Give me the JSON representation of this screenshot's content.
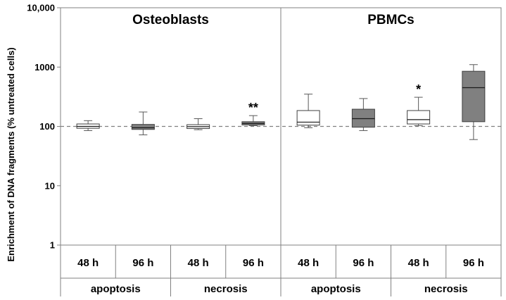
{
  "chart_data": {
    "type": "box",
    "ylabel": "Enrichment of DNA fragments (% untreated cells)",
    "y_scale": "log",
    "ylim": [
      1,
      10000
    ],
    "y_ticks": [
      {
        "value": 1,
        "label": "1"
      },
      {
        "value": 10,
        "label": "10"
      },
      {
        "value": 100,
        "label": "100"
      },
      {
        "value": 1000,
        "label": "1000"
      },
      {
        "value": 10000,
        "label": "10,000"
      }
    ],
    "reference_line": {
      "value": 100,
      "style": "dashed",
      "color": "#808080"
    },
    "panels": [
      {
        "title": "Osteoblasts"
      },
      {
        "title": "PBMCs"
      }
    ],
    "groups": [
      {
        "label": "apoptosis"
      },
      {
        "label": "necrosis"
      },
      {
        "label": "apoptosis"
      },
      {
        "label": "necrosis"
      }
    ],
    "boxes": [
      {
        "panel": "Osteoblasts",
        "assay": "apoptosis",
        "time": "48 h",
        "fill": "#ffffff",
        "min": 85,
        "q1": 93,
        "median": 100,
        "q3": 110,
        "max": 125,
        "sig": ""
      },
      {
        "panel": "Osteoblasts",
        "assay": "apoptosis",
        "time": "96 h",
        "fill": "#808080",
        "min": 72,
        "q1": 89,
        "median": 95,
        "q3": 108,
        "max": 175,
        "sig": ""
      },
      {
        "panel": "Osteoblasts",
        "assay": "necrosis",
        "time": "48 h",
        "fill": "#ffffff",
        "min": 88,
        "q1": 92,
        "median": 99,
        "q3": 107,
        "max": 135,
        "sig": ""
      },
      {
        "panel": "Osteoblasts",
        "assay": "necrosis",
        "time": "96 h",
        "fill": "#808080",
        "min": 103,
        "q1": 106,
        "median": 112,
        "q3": 120,
        "max": 152,
        "sig": "**"
      },
      {
        "panel": "PBMCs",
        "assay": "apoptosis",
        "time": "48 h",
        "fill": "#ffffff",
        "min": 95,
        "q1": 105,
        "median": 118,
        "q3": 185,
        "max": 350,
        "sig": ""
      },
      {
        "panel": "PBMCs",
        "assay": "apoptosis",
        "time": "96 h",
        "fill": "#808080",
        "min": 85,
        "q1": 97,
        "median": 135,
        "q3": 195,
        "max": 295,
        "sig": ""
      },
      {
        "panel": "PBMCs",
        "assay": "necrosis",
        "time": "48 h",
        "fill": "#ffffff",
        "min": 103,
        "q1": 110,
        "median": 130,
        "q3": 185,
        "max": 310,
        "sig": "*"
      },
      {
        "panel": "PBMCs",
        "assay": "necrosis",
        "time": "96 h",
        "fill": "#808080",
        "min": 60,
        "q1": 120,
        "median": 450,
        "q3": 850,
        "max": 1100,
        "sig": ""
      }
    ]
  }
}
